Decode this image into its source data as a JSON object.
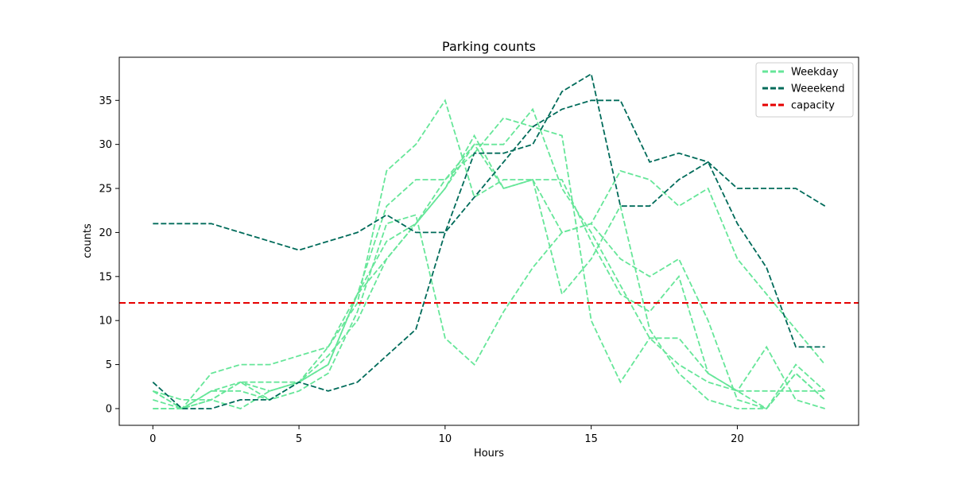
{
  "chart_data": {
    "type": "line",
    "title": "Parking counts",
    "xlabel": "Hours",
    "ylabel": "counts",
    "xlim": [
      -1.15,
      24.15
    ],
    "ylim": [
      -1.9,
      39.9
    ],
    "xticks": [
      0,
      5,
      10,
      15,
      20
    ],
    "yticks": [
      0,
      5,
      10,
      15,
      20,
      25,
      30,
      35
    ],
    "x": [
      0,
      1,
      2,
      3,
      4,
      5,
      6,
      7,
      8,
      9,
      10,
      11,
      12,
      13,
      14,
      15,
      16,
      17,
      18,
      19,
      20,
      21,
      22,
      23
    ],
    "legend_position": "top-right",
    "legend": [
      {
        "label": "Weekday",
        "color": "#66e699"
      },
      {
        "label": "Weeekend",
        "color": "#006b5a"
      },
      {
        "label": "capacity",
        "color": "#e60000"
      }
    ],
    "capacity": 12,
    "series": [
      {
        "group": "weekday",
        "color": "#66e699",
        "values": [
          2,
          1,
          1,
          3,
          3,
          3,
          7,
          12,
          27,
          30,
          35,
          24,
          26,
          26,
          13,
          17,
          23,
          9,
          4,
          1,
          0,
          0,
          4,
          1
        ]
      },
      {
        "group": "weekday",
        "color": "#66e699",
        "values": [
          1,
          0,
          1,
          0,
          2,
          3,
          5,
          13,
          23,
          26,
          26,
          30,
          25,
          26,
          20,
          21,
          17,
          15,
          17,
          10,
          1,
          0,
          5,
          2
        ]
      },
      {
        "group": "weekday",
        "color": "#66e699",
        "values": [
          2,
          0,
          2,
          3,
          2,
          3,
          5,
          13,
          19,
          21,
          25,
          31,
          25,
          26,
          26,
          19,
          13,
          11,
          15,
          4,
          2,
          7,
          1,
          0
        ]
      },
      {
        "group": "weekday",
        "color": "#66e699",
        "values": [
          0,
          0,
          2,
          2,
          1,
          2,
          4,
          11,
          21,
          22,
          8,
          5,
          11,
          16,
          20,
          21,
          27,
          26,
          23,
          25,
          17,
          13,
          9,
          5
        ]
      },
      {
        "group": "weekday",
        "color": "#66e699",
        "values": [
          2,
          0,
          4,
          5,
          5,
          6,
          7,
          13,
          17,
          21,
          26,
          29,
          33,
          32,
          31,
          10,
          3,
          8,
          8,
          4,
          2,
          2,
          2,
          2
        ]
      },
      {
        "group": "weekday",
        "color": "#66e699",
        "values": [
          0,
          0,
          1,
          3,
          1,
          3,
          6,
          10,
          17,
          21,
          25,
          30,
          30,
          34,
          25,
          20,
          14,
          8,
          5,
          3,
          2,
          0,
          4,
          1
        ]
      },
      {
        "group": "weekend",
        "color": "#006b5a",
        "values": [
          3,
          0,
          0,
          1,
          1,
          3,
          2,
          3,
          6,
          9,
          20,
          24,
          28,
          32,
          34,
          35,
          35,
          28,
          29,
          28,
          25,
          25,
          25,
          23
        ]
      },
      {
        "group": "weekend",
        "color": "#006b5a",
        "values": [
          21,
          21,
          21,
          20,
          19,
          18,
          19,
          20,
          22,
          20,
          20,
          29,
          29,
          30,
          36,
          38,
          23,
          23,
          26,
          28,
          21,
          16,
          7,
          7
        ]
      }
    ]
  }
}
